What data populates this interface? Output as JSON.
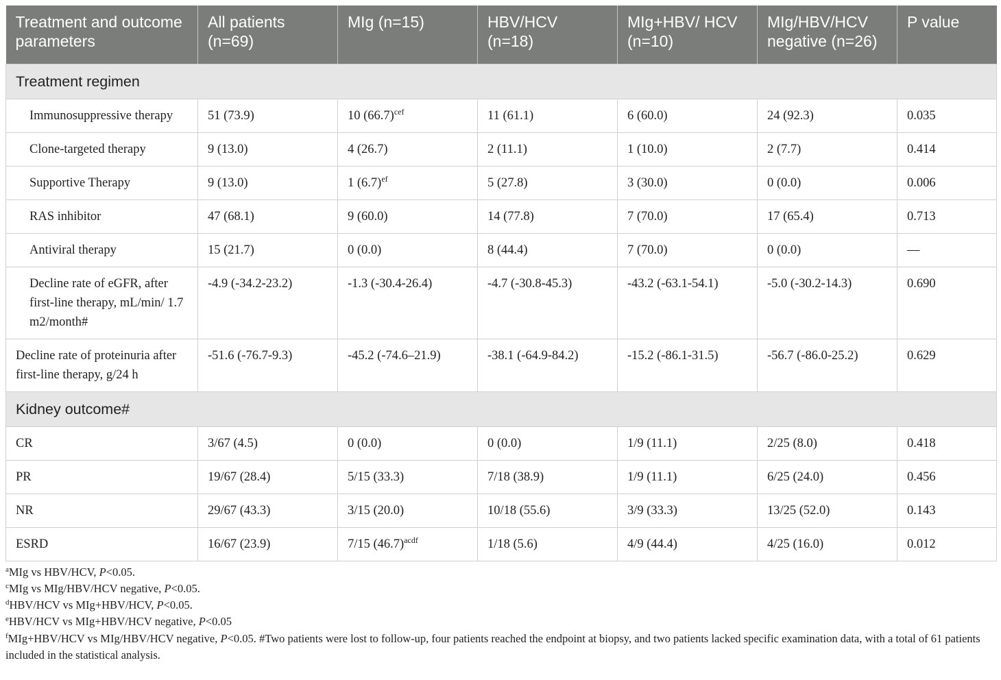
{
  "table": {
    "headers": [
      "Treatment and outcome parameters",
      "All patients (n=69)",
      "MIg (n=15)",
      "HBV/HCV (n=18)",
      "MIg+HBV/ HCV (n=10)",
      "MIg/HBV/HCV negative (n=26)",
      "P value"
    ],
    "sections": [
      {
        "title": "Treatment regimen",
        "rows": [
          {
            "label": "Immunosuppressive therapy",
            "indent": true,
            "h": "r48",
            "cells": [
              {
                "v": "51 (73.9)"
              },
              {
                "v": "10 (66.7)",
                "sup": "cef"
              },
              {
                "v": "11 (61.1)"
              },
              {
                "v": "6 (60.0)"
              },
              {
                "v": "24 (92.3)"
              },
              {
                "v": "0.035"
              }
            ]
          },
          {
            "label": "Clone-targeted therapy",
            "indent": true,
            "h": "r48",
            "cells": [
              {
                "v": "9 (13.0)"
              },
              {
                "v": "4 (26.7)"
              },
              {
                "v": "2 (11.1)"
              },
              {
                "v": "1 (10.0)"
              },
              {
                "v": "2 (7.7)"
              },
              {
                "v": "0.414"
              }
            ]
          },
          {
            "label": "Supportive Therapy",
            "indent": true,
            "h": "r48",
            "cells": [
              {
                "v": "9 (13.0)"
              },
              {
                "v": "1 (6.7)",
                "sup": "ef"
              },
              {
                "v": "5 (27.8)"
              },
              {
                "v": "3 (30.0)"
              },
              {
                "v": "0 (0.0)"
              },
              {
                "v": "0.006"
              }
            ]
          },
          {
            "label": "RAS inhibitor",
            "indent": true,
            "h": "r48",
            "cells": [
              {
                "v": "47 (68.1)"
              },
              {
                "v": "9 (60.0)"
              },
              {
                "v": "14 (77.8)"
              },
              {
                "v": "7 (70.0)"
              },
              {
                "v": "17 (65.4)"
              },
              {
                "v": "0.713"
              }
            ]
          },
          {
            "label": "Antiviral therapy",
            "indent": true,
            "h": "r48",
            "cells": [
              {
                "v": "15 (21.7)"
              },
              {
                "v": "0 (0.0)"
              },
              {
                "v": "8 (44.4)"
              },
              {
                "v": "7 (70.0)"
              },
              {
                "v": "0 (0.0)"
              },
              {
                "v": "—"
              }
            ]
          },
          {
            "label": "Decline rate of eGFR, after first-line therapy, mL/min/ 1.7 m2/month#",
            "indent": true,
            "h": "r104",
            "cells": [
              {
                "v": "-4.9 (-34.2-23.2)"
              },
              {
                "v": "-1.3 (-30.4-26.4)"
              },
              {
                "v": "-4.7 (-30.8-45.3)"
              },
              {
                "v": "-43.2 (-63.1-54.1)"
              },
              {
                "v": "-5.0 (-30.2-14.3)"
              },
              {
                "v": "0.690"
              }
            ]
          },
          {
            "label": "Decline rate of proteinuria after first-line therapy, g/24 h",
            "indent": false,
            "h": "r76",
            "cells": [
              {
                "v": "-51.6 (-76.7-9.3)"
              },
              {
                "v": "-45.2 (-74.6–21.9)"
              },
              {
                "v": "-38.1 (-64.9-84.2)"
              },
              {
                "v": "-15.2 (-86.1-31.5)"
              },
              {
                "v": "-56.7 (-86.0-25.2)"
              },
              {
                "v": "0.629"
              }
            ]
          }
        ]
      },
      {
        "title": "Kidney outcome#",
        "rows": [
          {
            "label": "CR",
            "indent": false,
            "h": "r48",
            "cells": [
              {
                "v": "3/67 (4.5)"
              },
              {
                "v": "0 (0.0)"
              },
              {
                "v": "0 (0.0)"
              },
              {
                "v": "1/9 (11.1)"
              },
              {
                "v": "2/25 (8.0)"
              },
              {
                "v": "0.418"
              }
            ]
          },
          {
            "label": "PR",
            "indent": false,
            "h": "r48",
            "cells": [
              {
                "v": "19/67 (28.4)"
              },
              {
                "v": "5/15 (33.3)"
              },
              {
                "v": "7/18 (38.9)"
              },
              {
                "v": "1/9 (11.1)"
              },
              {
                "v": "6/25 (24.0)"
              },
              {
                "v": "0.456"
              }
            ]
          },
          {
            "label": "NR",
            "indent": false,
            "h": "r48",
            "cells": [
              {
                "v": "29/67 (43.3)"
              },
              {
                "v": "3/15 (20.0)"
              },
              {
                "v": "10/18 (55.6)"
              },
              {
                "v": "3/9 (33.3)"
              },
              {
                "v": "13/25 (52.0)"
              },
              {
                "v": "0.143"
              }
            ]
          },
          {
            "label": "ESRD",
            "indent": false,
            "h": "r48",
            "cells": [
              {
                "v": "16/67 (23.9)"
              },
              {
                "v": "7/15 (46.7)",
                "sup": "acdf"
              },
              {
                "v": "1/18 (5.6)"
              },
              {
                "v": "4/9 (44.4)"
              },
              {
                "v": "4/25 (16.0)"
              },
              {
                "v": "0.012"
              }
            ]
          }
        ]
      }
    ]
  },
  "footnotes": [
    {
      "sup": "a",
      "text": "MIg vs HBV/HCV, ",
      "p": "P",
      "tail": "<0.05."
    },
    {
      "sup": "c",
      "text": "MIg vs MIg/HBV/HCV negative, ",
      "p": "P",
      "tail": "<0.05."
    },
    {
      "sup": "d",
      "text": "HBV/HCV vs MIg+HBV/HCV, ",
      "p": "P",
      "tail": "<0.05."
    },
    {
      "sup": "e",
      "text": "HBV/HCV vs MIg+HBV/HCV negative, ",
      "p": "P",
      "tail": "<0.05"
    },
    {
      "sup": "f",
      "text": "MIg+HBV/HCV vs MIg/HBV/HCV negative, ",
      "p": "P",
      "tail": "<0.05. #Two patients were lost to follow-up, four patients reached the endpoint at biopsy, and two patients lacked specific examination data, with a total of 61 patients included in the statistical analysis."
    }
  ]
}
